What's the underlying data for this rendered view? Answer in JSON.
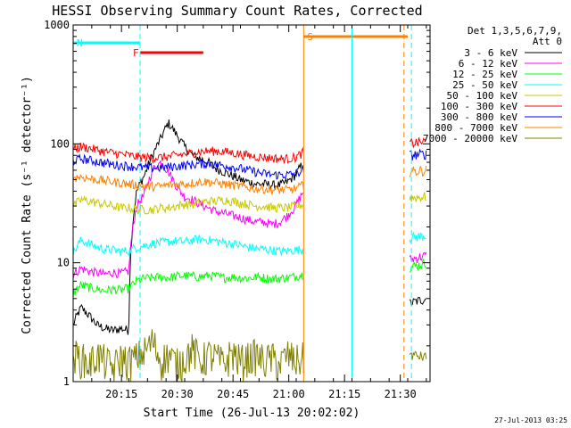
{
  "chart_data": {
    "type": "line",
    "title": "HESSI Observing Summary Count Rates, Corrected",
    "xlabel": "Start Time (26-Jul-13 20:02:02)",
    "ylabel": "Corrected Count Rate (s⁻¹ detector⁻¹)",
    "y_scale": "log",
    "ylim": [
      1,
      1000
    ],
    "xlim_minutes": [
      0,
      96
    ],
    "x_tick_labels": [
      "20:15",
      "20:30",
      "20:45",
      "21:00",
      "21:15",
      "21:30"
    ],
    "y_tick_labels": [
      "1",
      "10",
      "100",
      "1000"
    ],
    "legend_header": [
      "Det 1,3,5,6,7,9,",
      "Att 0"
    ],
    "legend_placement": "right",
    "timestamp": "27-Jul-2013 03:25",
    "annotations": [
      {
        "label": "N",
        "color": "#00ffff",
        "x_start": 0,
        "x_end": 18
      },
      {
        "label": "F",
        "color": "#ff0000",
        "x_start": 18,
        "x_end": 35
      },
      {
        "label": "S",
        "color": "#ff8000",
        "x_start": 62,
        "x_end": 90
      }
    ],
    "shading_gaps": [
      [
        62,
        90
      ]
    ],
    "series": [
      {
        "name": "3 - 6 keV",
        "color": "#000000",
        "start": 3,
        "values": [
          4.2,
          3.6,
          3.0,
          2.8,
          2.7,
          2.8,
          2.7,
          40,
          55,
          80,
          110,
          150,
          120,
          95,
          80,
          75,
          70,
          62,
          58,
          54,
          50,
          48,
          46,
          46,
          45,
          45,
          48,
          55,
          70
        ],
        "tail": [
          4.5,
          5.0
        ]
      },
      {
        "name": "6 - 12 keV",
        "color": "#ff00ff",
        "start": 8,
        "values": [
          9.0,
          8.5,
          8.2,
          8.0,
          8.3,
          8.1,
          8.5,
          30,
          38,
          60,
          70,
          58,
          44,
          36,
          34,
          31,
          29,
          27,
          26,
          25,
          24,
          23,
          22,
          22,
          21,
          22,
          25,
          30,
          40
        ],
        "tail": [
          10.5,
          11.5
        ]
      },
      {
        "name": "12 - 25 keV",
        "color": "#00ff00",
        "start": 5.5,
        "values": [
          6.5,
          6.2,
          6.0,
          5.8,
          6.0,
          5.9,
          6.1,
          7.0,
          7.4,
          7.5,
          7.6,
          7.5,
          7.7,
          7.8,
          7.7,
          7.6,
          7.8,
          7.7,
          7.5,
          7.6,
          7.5,
          7.4,
          7.6,
          7.5,
          7.3,
          7.4,
          7.5,
          7.7,
          8.0
        ],
        "tail": [
          9.0,
          10.0
        ]
      },
      {
        "name": "25 - 50 keV",
        "color": "#00ffff",
        "start": 12,
        "values": [
          15.5,
          14.5,
          13.5,
          13.0,
          12.8,
          12.5,
          12.6,
          13.5,
          14.0,
          14.5,
          14.8,
          15.0,
          15.2,
          15.0,
          15.5,
          15.8,
          15.6,
          15.2,
          14.8,
          14.5,
          14.0,
          13.5,
          13.2,
          13.0,
          12.8,
          12.5,
          12.6,
          12.8,
          13.0
        ],
        "tail": [
          16.0,
          17.0
        ]
      },
      {
        "name": "50 - 100 keV",
        "color": "#c8c800",
        "start": 30,
        "values": [
          34,
          33,
          32,
          31,
          30,
          29,
          29,
          28,
          28,
          28,
          29,
          29,
          30,
          31,
          31,
          32,
          33,
          33,
          34,
          33,
          32,
          31,
          30,
          30,
          29,
          29,
          29,
          30,
          31
        ],
        "tail": [
          35,
          36
        ]
      },
      {
        "name": "100 - 300 keV",
        "color": "#ff0000",
        "start": 90,
        "values": [
          95,
          92,
          89,
          86,
          84,
          82,
          80,
          78,
          77,
          76,
          77,
          78,
          80,
          82,
          84,
          86,
          87,
          87,
          86,
          84,
          82,
          80,
          78,
          77,
          76,
          75,
          75,
          77,
          85
        ],
        "tail": [
          100,
          105
        ]
      },
      {
        "name": "300 - 800 keV",
        "color": "#0000ff",
        "start": 72,
        "values": [
          75,
          73,
          71,
          69,
          67,
          66,
          65,
          64,
          63,
          63,
          63,
          64,
          65,
          66,
          67,
          68,
          68,
          67,
          66,
          64,
          62,
          60,
          58,
          56,
          55,
          55,
          55,
          56,
          60
        ],
        "tail": [
          80,
          82
        ]
      },
      {
        "name": "800 - 7000 keV",
        "color": "#ff8000",
        "start": 52,
        "values": [
          53,
          51,
          50,
          49,
          48,
          47,
          46,
          45,
          44,
          44,
          44,
          45,
          46,
          46,
          47,
          48,
          48,
          47,
          46,
          45,
          44,
          43,
          42,
          42,
          41,
          41,
          41,
          42,
          45
        ],
        "tail": [
          58,
          60
        ]
      },
      {
        "name": "7000 - 20000 keV",
        "color": "#808000",
        "start": 1.7,
        "values": [
          1.6,
          1.4,
          1.7,
          1.5,
          1.3,
          1.6,
          1.5,
          1.6,
          1.8,
          2.2,
          1.5,
          1.7,
          1.4,
          1.6,
          1.9,
          1.5,
          1.7,
          1.6,
          1.4,
          1.8,
          1.5,
          1.6,
          1.7,
          1.5,
          1.6,
          1.4,
          1.7,
          1.5,
          1.6
        ],
        "tail": [
          1.7,
          1.6
        ]
      }
    ]
  }
}
